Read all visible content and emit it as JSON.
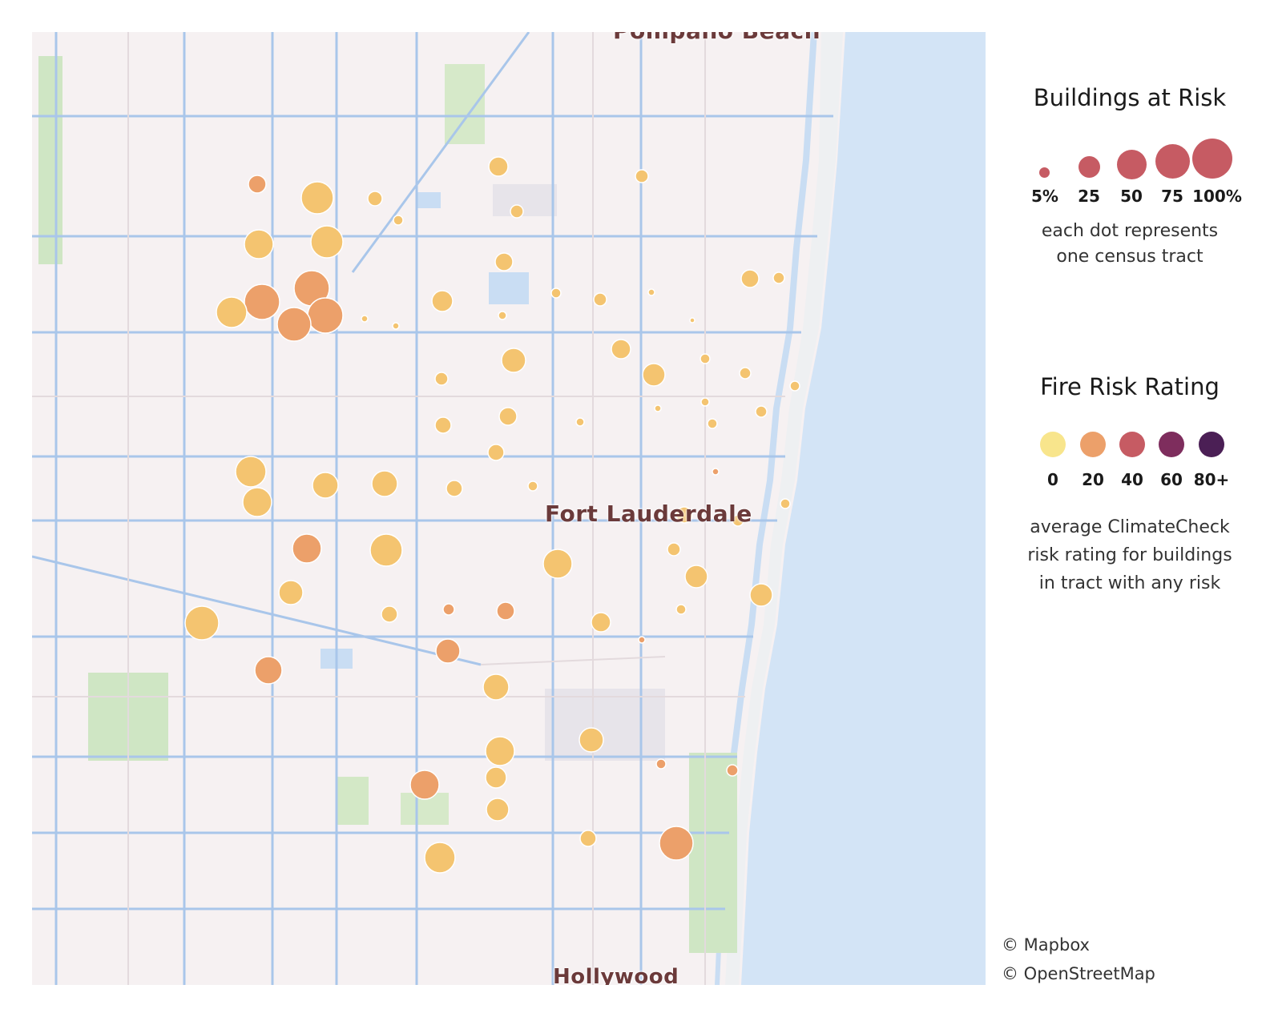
{
  "map": {
    "places": [
      {
        "label": "Pompano Beach",
        "key": "pompano"
      },
      {
        "label": "Fort Lauderdale",
        "key": "ftl"
      },
      {
        "label": "Hollywood",
        "key": "hollywood"
      }
    ],
    "marker_colors": {
      "0": "#f8e58c",
      "20": "#f4c470",
      "30": "#eca06a",
      "40": "#c65b63",
      "60": "#7e2d5d",
      "80": "#4b1f55"
    }
  },
  "legend": {
    "size_title": "Buildings at Risk",
    "size_ticks": [
      "5%",
      "25",
      "50",
      "75",
      "100%"
    ],
    "size_caption_1": "each dot represents",
    "size_caption_2": "one census tract",
    "color_title": "Fire Risk Rating",
    "color_ticks": [
      "0",
      "20",
      "40",
      "60",
      "80+"
    ],
    "color_values": [
      "#f8e58c",
      "#eca06a",
      "#c65b63",
      "#7e2d5d",
      "#4b1f55"
    ],
    "size_color": "#c65b63",
    "color_caption_1": "average ClimateCheck",
    "color_caption_2": "risk rating for buildings",
    "color_caption_3": "in tract with any risk"
  },
  "attribution": {
    "mapbox": "© Mapbox",
    "osm": "© OpenStreetMap"
  }
}
